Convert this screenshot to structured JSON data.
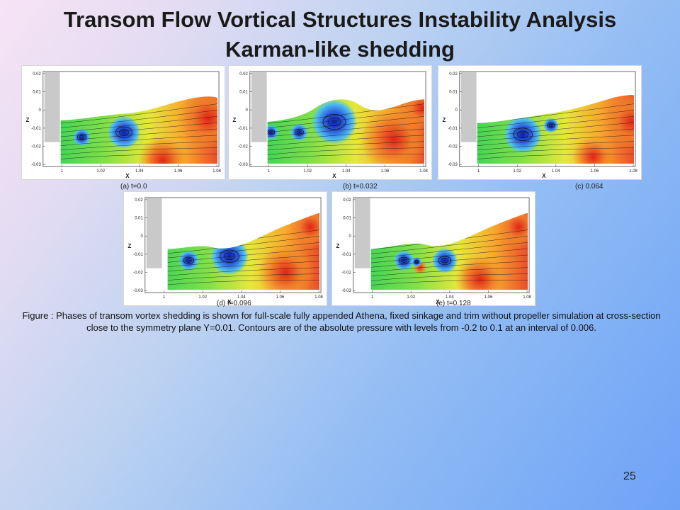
{
  "title_line1": "Transom Flow Vortical Structures Instability Analysis",
  "title_line2": "Karman-like shedding",
  "axes": {
    "xlabel": "X",
    "ylabel": "Z",
    "xticks": [
      "1",
      "1.02",
      "1.04",
      "1.06",
      "1.08"
    ],
    "yticks": [
      "0.02",
      "0.01",
      "0",
      "-0.01",
      "-0.02",
      "-0.03"
    ]
  },
  "panels": [
    {
      "caption": "(a) t=0.0"
    },
    {
      "caption": "(b) t=0.032"
    },
    {
      "caption": "(c) 0.064"
    },
    {
      "caption": "(d) t=0.096"
    },
    {
      "caption": "(e) t=0.128"
    }
  ],
  "figure_caption": "Figure : Phases of transom vortex shedding is shown for full-scale fully appended Athena, fixed sinkage and trim without propeller simulation at cross-section close to the symmetry plane Y=0.01. Contours are of the absolute pressure with levels from -0.2 to 0.1 at an interval of 0.006.",
  "page_number": "25"
}
